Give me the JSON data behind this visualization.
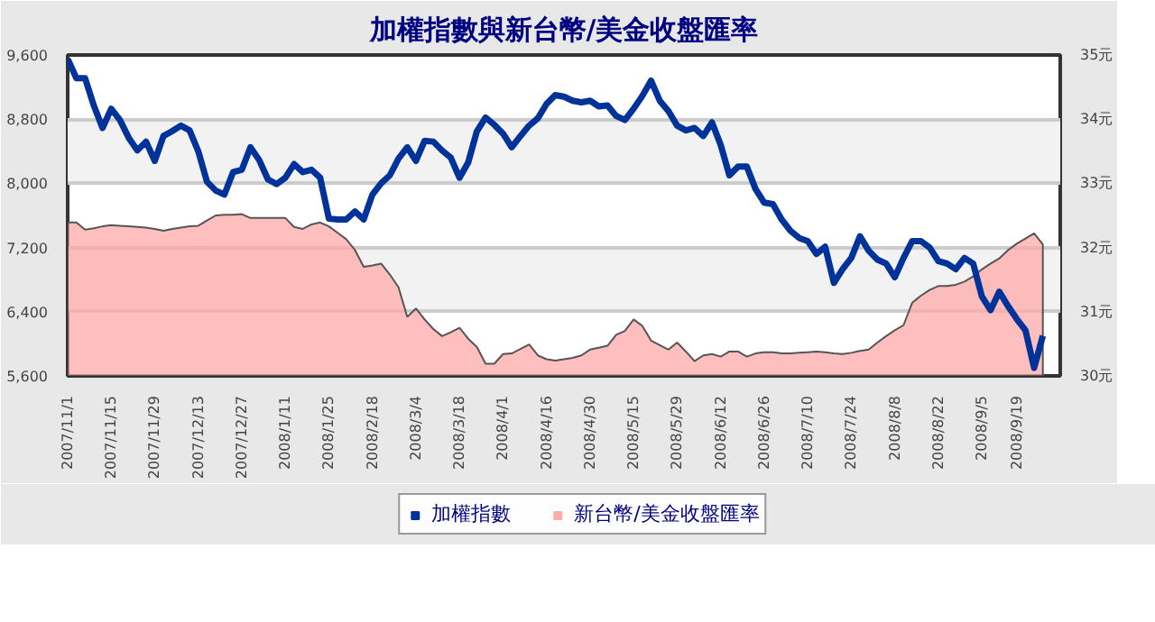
{
  "chart_data": {
    "type": "line",
    "title": "加權指數與新台幣/美金收盤匯率",
    "categories": [
      "2007/11/1",
      null,
      null,
      null,
      null,
      "2007/11/15",
      null,
      null,
      null,
      null,
      "2007/11/29",
      null,
      null,
      null,
      null,
      "2007/12/13",
      null,
      null,
      null,
      null,
      "2007/12/27",
      null,
      null,
      null,
      null,
      "2008/1/11",
      null,
      null,
      null,
      null,
      "2008/1/25",
      null,
      null,
      null,
      null,
      "2008/2/18",
      null,
      null,
      null,
      null,
      "2008/3/4",
      null,
      null,
      null,
      null,
      "2008/3/18",
      null,
      null,
      null,
      null,
      "2008/4/1",
      null,
      null,
      null,
      null,
      "2008/4/16",
      null,
      null,
      null,
      null,
      "2008/4/30",
      null,
      null,
      null,
      null,
      "2008/5/15",
      null,
      null,
      null,
      null,
      "2008/5/29",
      null,
      null,
      null,
      null,
      "2008/6/12",
      null,
      null,
      null,
      null,
      "2008/6/26",
      null,
      null,
      null,
      null,
      "2008/7/10",
      null,
      null,
      null,
      null,
      "2008/7/24",
      null,
      null,
      null,
      null,
      "2008/8/8",
      null,
      null,
      null,
      null,
      "2008/8/22",
      null,
      null,
      null,
      null,
      "2008/9/5",
      null,
      null,
      null,
      "2008/9/19",
      null,
      null,
      null
    ],
    "ylim": [
      5600,
      9600
    ],
    "yticks": [
      {
        "value": 5600,
        "label": "5,600"
      },
      {
        "value": 6400,
        "label": "6,400"
      },
      {
        "value": 7200,
        "label": "7,200"
      },
      {
        "value": 8000,
        "label": "8,000"
      },
      {
        "value": 8800,
        "label": "8,800"
      },
      {
        "value": 9600,
        "label": "9,600"
      }
    ],
    "y2lim": [
      30,
      35
    ],
    "y2ticks": [
      {
        "value": 30,
        "label": "30元"
      },
      {
        "value": 31,
        "label": "31元"
      },
      {
        "value": 32,
        "label": "32元"
      },
      {
        "value": 33,
        "label": "33元"
      },
      {
        "value": 34,
        "label": "34元"
      },
      {
        "value": 35,
        "label": "35元"
      }
    ],
    "grid": "y",
    "legend": "bottom",
    "series": [
      {
        "name": "加權指數",
        "color": "#003399",
        "values": [
          9550,
          9310,
          9310,
          8970,
          8690,
          8930,
          8790,
          8570,
          8410,
          8520,
          8280,
          8590,
          8650,
          8720,
          8660,
          8400,
          8020,
          7910,
          7860,
          8140,
          8170,
          8450,
          8290,
          8050,
          7990,
          8070,
          8240,
          8140,
          8170,
          8070,
          7560,
          7550,
          7550,
          7650,
          7550,
          7860,
          8000,
          8100,
          8310,
          8450,
          8280,
          8530,
          8520,
          8410,
          8320,
          8070,
          8260,
          8650,
          8820,
          8730,
          8620,
          8450,
          8590,
          8720,
          8810,
          8990,
          9100,
          9080,
          9030,
          9010,
          9030,
          8960,
          8970,
          8840,
          8790,
          8930,
          9090,
          9280,
          9030,
          8900,
          8720,
          8660,
          8690,
          8590,
          8760,
          8480,
          8100,
          8210,
          8210,
          7930,
          7760,
          7740,
          7550,
          7410,
          7320,
          7280,
          7120,
          7210,
          6760,
          6930,
          7070,
          7340,
          7160,
          7050,
          7000,
          6830,
          7070,
          7280,
          7280,
          7200,
          7030,
          7000,
          6930,
          7070,
          7000,
          6590,
          6420,
          6650,
          6470,
          6310,
          6170,
          5700,
          6100
        ]
      },
      {
        "name": "新台幣/美金收盤匯率",
        "type": "area",
        "axis": "y2",
        "color": "#ffaaaa",
        "values": [
          32.39,
          32.39,
          32.28,
          32.3,
          32.33,
          32.35,
          32.34,
          32.33,
          32.32,
          32.31,
          32.29,
          32.26,
          32.29,
          32.31,
          32.33,
          32.34,
          32.42,
          32.5,
          32.51,
          32.51,
          32.52,
          32.46,
          32.46,
          32.46,
          32.46,
          32.46,
          32.32,
          32.29,
          32.36,
          32.39,
          32.33,
          32.23,
          32.13,
          31.96,
          31.7,
          31.72,
          31.75,
          31.58,
          31.38,
          30.92,
          31.05,
          30.88,
          30.73,
          30.62,
          30.68,
          30.75,
          30.58,
          30.45,
          30.19,
          30.19,
          30.34,
          30.35,
          30.42,
          30.49,
          30.32,
          30.26,
          30.24,
          30.26,
          30.28,
          30.32,
          30.41,
          30.44,
          30.47,
          30.64,
          30.7,
          30.88,
          30.78,
          30.55,
          30.48,
          30.41,
          30.52,
          30.38,
          30.23,
          30.32,
          30.34,
          30.3,
          30.38,
          30.38,
          30.3,
          30.35,
          30.37,
          30.37,
          30.35,
          30.35,
          30.36,
          30.37,
          30.38,
          30.37,
          30.35,
          30.34,
          30.36,
          30.39,
          30.41,
          30.52,
          30.62,
          30.71,
          30.79,
          31.14,
          31.25,
          31.34,
          31.4,
          31.4,
          31.42,
          31.47,
          31.55,
          31.66,
          31.75,
          31.83,
          31.96,
          32.06,
          32.14,
          32.22,
          32.05
        ]
      }
    ]
  }
}
